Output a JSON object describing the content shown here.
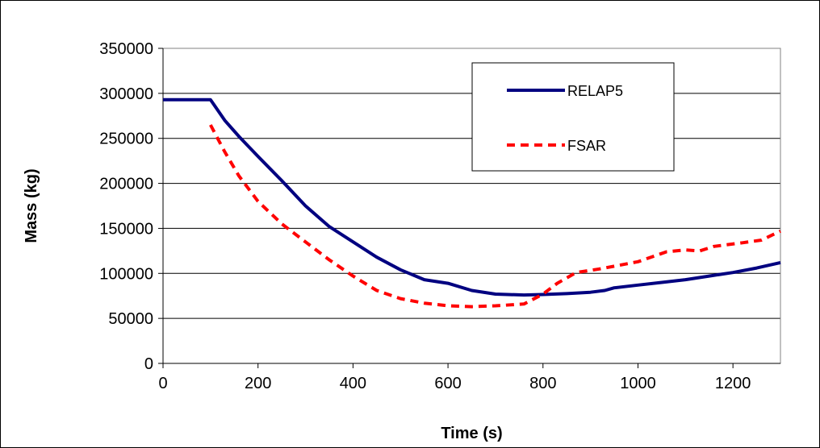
{
  "chart_data": {
    "type": "line",
    "xlabel": "Time (s)",
    "ylabel": "Mass (kg)",
    "xlim": [
      0,
      1300
    ],
    "ylim": [
      0,
      350000
    ],
    "xticks": [
      0,
      200,
      400,
      600,
      800,
      1000,
      1200
    ],
    "yticks": [
      0,
      50000,
      100000,
      150000,
      200000,
      250000,
      300000,
      350000
    ],
    "grid": "horizontal",
    "legend_position": "top-right",
    "series": [
      {
        "name": "RELAP5",
        "color": "#000080",
        "style": "solid",
        "points": [
          [
            0,
            293000
          ],
          [
            100,
            293000
          ],
          [
            130,
            270000
          ],
          [
            160,
            252000
          ],
          [
            200,
            230000
          ],
          [
            250,
            203000
          ],
          [
            300,
            175000
          ],
          [
            350,
            152000
          ],
          [
            400,
            135000
          ],
          [
            450,
            118000
          ],
          [
            500,
            104000
          ],
          [
            550,
            93000
          ],
          [
            600,
            89000
          ],
          [
            650,
            81000
          ],
          [
            700,
            77000
          ],
          [
            760,
            76000
          ],
          [
            800,
            76500
          ],
          [
            850,
            77500
          ],
          [
            900,
            79000
          ],
          [
            930,
            81000
          ],
          [
            950,
            84000
          ],
          [
            1000,
            87000
          ],
          [
            1050,
            90000
          ],
          [
            1100,
            93000
          ],
          [
            1150,
            97000
          ],
          [
            1200,
            101000
          ],
          [
            1250,
            106000
          ],
          [
            1300,
            112000
          ]
        ]
      },
      {
        "name": "FSAR",
        "color": "#ff0000",
        "style": "dashed",
        "points": [
          [
            100,
            265000
          ],
          [
            130,
            235000
          ],
          [
            160,
            208000
          ],
          [
            200,
            180000
          ],
          [
            250,
            155000
          ],
          [
            300,
            135000
          ],
          [
            350,
            115000
          ],
          [
            400,
            97000
          ],
          [
            450,
            81000
          ],
          [
            500,
            72000
          ],
          [
            550,
            67000
          ],
          [
            600,
            64000
          ],
          [
            650,
            63000
          ],
          [
            700,
            64000
          ],
          [
            760,
            66000
          ],
          [
            800,
            77000
          ],
          [
            830,
            89000
          ],
          [
            870,
            101000
          ],
          [
            920,
            105000
          ],
          [
            1000,
            113000
          ],
          [
            1060,
            124000
          ],
          [
            1100,
            126000
          ],
          [
            1130,
            125000
          ],
          [
            1160,
            130000
          ],
          [
            1220,
            134000
          ],
          [
            1260,
            137000
          ],
          [
            1300,
            147000
          ]
        ]
      }
    ]
  }
}
